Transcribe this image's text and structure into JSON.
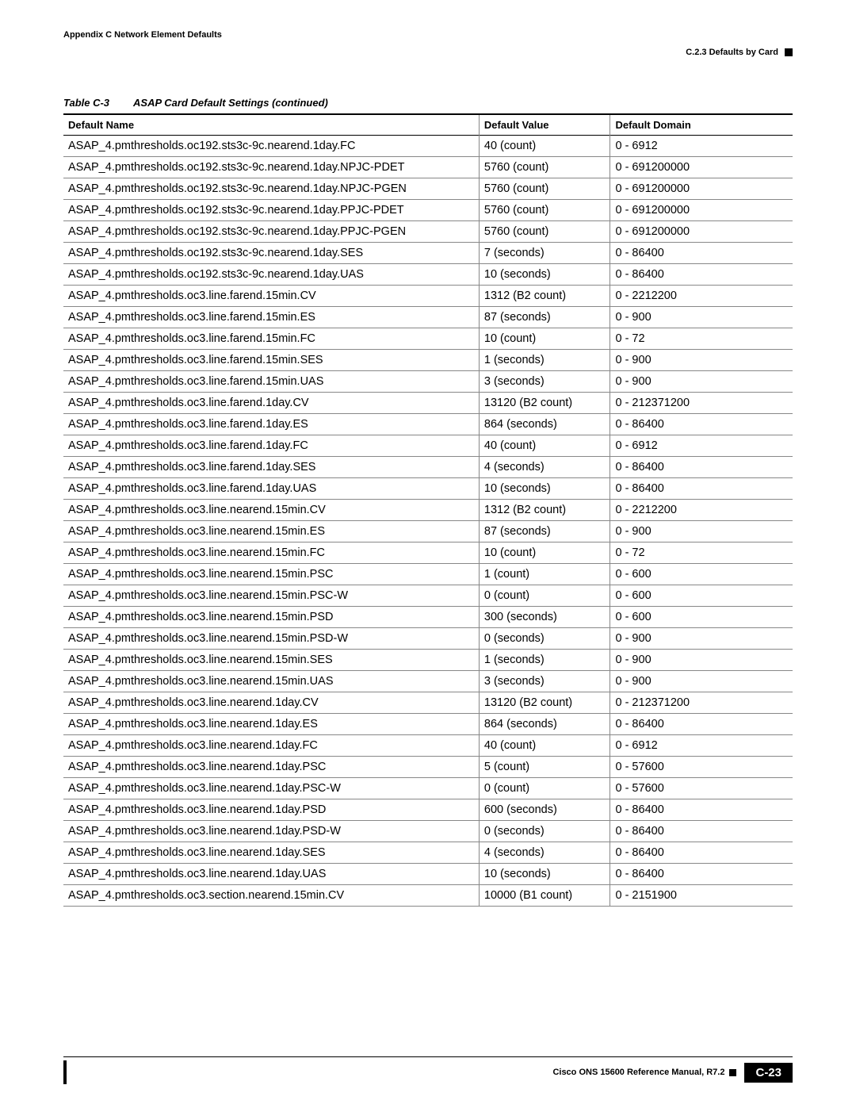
{
  "header": {
    "appendix": "Appendix C  Network Element Defaults",
    "section": "C.2.3  Defaults by Card"
  },
  "tableCaption": {
    "num": "Table C-3",
    "title": "ASAP Card Default Settings (continued)"
  },
  "columns": [
    "Default Name",
    "Default Value",
    "Default Domain"
  ],
  "rows": [
    [
      "ASAP_4.pmthresholds.oc192.sts3c-9c.nearend.1day.FC",
      "40 (count)",
      "0 - 6912"
    ],
    [
      "ASAP_4.pmthresholds.oc192.sts3c-9c.nearend.1day.NPJC-PDET",
      "5760 (count)",
      "0 - 691200000"
    ],
    [
      "ASAP_4.pmthresholds.oc192.sts3c-9c.nearend.1day.NPJC-PGEN",
      "5760 (count)",
      "0 - 691200000"
    ],
    [
      "ASAP_4.pmthresholds.oc192.sts3c-9c.nearend.1day.PPJC-PDET",
      "5760 (count)",
      "0 - 691200000"
    ],
    [
      "ASAP_4.pmthresholds.oc192.sts3c-9c.nearend.1day.PPJC-PGEN",
      "5760 (count)",
      "0 - 691200000"
    ],
    [
      "ASAP_4.pmthresholds.oc192.sts3c-9c.nearend.1day.SES",
      "7 (seconds)",
      "0 - 86400"
    ],
    [
      "ASAP_4.pmthresholds.oc192.sts3c-9c.nearend.1day.UAS",
      "10 (seconds)",
      "0 - 86400"
    ],
    [
      "ASAP_4.pmthresholds.oc3.line.farend.15min.CV",
      "1312 (B2 count)",
      "0 - 2212200"
    ],
    [
      "ASAP_4.pmthresholds.oc3.line.farend.15min.ES",
      "87 (seconds)",
      "0 - 900"
    ],
    [
      "ASAP_4.pmthresholds.oc3.line.farend.15min.FC",
      "10 (count)",
      "0 - 72"
    ],
    [
      "ASAP_4.pmthresholds.oc3.line.farend.15min.SES",
      "1 (seconds)",
      "0 - 900"
    ],
    [
      "ASAP_4.pmthresholds.oc3.line.farend.15min.UAS",
      "3 (seconds)",
      "0 - 900"
    ],
    [
      "ASAP_4.pmthresholds.oc3.line.farend.1day.CV",
      "13120 (B2 count)",
      "0 - 212371200"
    ],
    [
      "ASAP_4.pmthresholds.oc3.line.farend.1day.ES",
      "864 (seconds)",
      "0 - 86400"
    ],
    [
      "ASAP_4.pmthresholds.oc3.line.farend.1day.FC",
      "40 (count)",
      "0 - 6912"
    ],
    [
      "ASAP_4.pmthresholds.oc3.line.farend.1day.SES",
      "4 (seconds)",
      "0 - 86400"
    ],
    [
      "ASAP_4.pmthresholds.oc3.line.farend.1day.UAS",
      "10 (seconds)",
      "0 - 86400"
    ],
    [
      "ASAP_4.pmthresholds.oc3.line.nearend.15min.CV",
      "1312 (B2 count)",
      "0 - 2212200"
    ],
    [
      "ASAP_4.pmthresholds.oc3.line.nearend.15min.ES",
      "87 (seconds)",
      "0 - 900"
    ],
    [
      "ASAP_4.pmthresholds.oc3.line.nearend.15min.FC",
      "10 (count)",
      "0 - 72"
    ],
    [
      "ASAP_4.pmthresholds.oc3.line.nearend.15min.PSC",
      "1 (count)",
      "0 - 600"
    ],
    [
      "ASAP_4.pmthresholds.oc3.line.nearend.15min.PSC-W",
      "0 (count)",
      "0 - 600"
    ],
    [
      "ASAP_4.pmthresholds.oc3.line.nearend.15min.PSD",
      "300 (seconds)",
      "0 - 600"
    ],
    [
      "ASAP_4.pmthresholds.oc3.line.nearend.15min.PSD-W",
      "0 (seconds)",
      "0 - 900"
    ],
    [
      "ASAP_4.pmthresholds.oc3.line.nearend.15min.SES",
      "1 (seconds)",
      "0 - 900"
    ],
    [
      "ASAP_4.pmthresholds.oc3.line.nearend.15min.UAS",
      "3 (seconds)",
      "0 - 900"
    ],
    [
      "ASAP_4.pmthresholds.oc3.line.nearend.1day.CV",
      "13120 (B2 count)",
      "0 - 212371200"
    ],
    [
      "ASAP_4.pmthresholds.oc3.line.nearend.1day.ES",
      "864 (seconds)",
      "0 - 86400"
    ],
    [
      "ASAP_4.pmthresholds.oc3.line.nearend.1day.FC",
      "40 (count)",
      "0 - 6912"
    ],
    [
      "ASAP_4.pmthresholds.oc3.line.nearend.1day.PSC",
      "5 (count)",
      "0 - 57600"
    ],
    [
      "ASAP_4.pmthresholds.oc3.line.nearend.1day.PSC-W",
      "0 (count)",
      "0 - 57600"
    ],
    [
      "ASAP_4.pmthresholds.oc3.line.nearend.1day.PSD",
      "600 (seconds)",
      "0 - 86400"
    ],
    [
      "ASAP_4.pmthresholds.oc3.line.nearend.1day.PSD-W",
      "0 (seconds)",
      "0 - 86400"
    ],
    [
      "ASAP_4.pmthresholds.oc3.line.nearend.1day.SES",
      "4 (seconds)",
      "0 - 86400"
    ],
    [
      "ASAP_4.pmthresholds.oc3.line.nearend.1day.UAS",
      "10 (seconds)",
      "0 - 86400"
    ],
    [
      "ASAP_4.pmthresholds.oc3.section.nearend.15min.CV",
      "10000 (B1 count)",
      "0 - 2151900"
    ]
  ],
  "footer": {
    "manual": "Cisco ONS 15600 Reference Manual, R7.2",
    "pageNum": "C-23"
  }
}
